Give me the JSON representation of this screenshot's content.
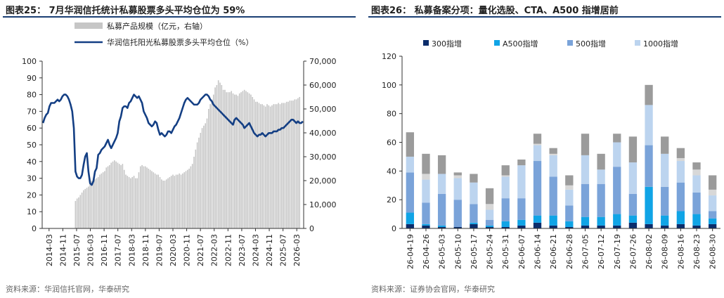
{
  "chart_data": [
    {
      "type": "bar+line",
      "title": "图表25： 7月华润信托统计私募股票多头平均仓位为 59%",
      "source": "资料来源：华润信托官网，华泰研究",
      "legend_placement": "top",
      "series": [
        {
          "name": "私募产品规模（亿元，右轴）",
          "type": "bar",
          "color": "#c6c6c6",
          "axis": "right",
          "values": [
            null,
            null,
            null,
            null,
            null,
            null,
            null,
            null,
            null,
            null,
            null,
            null,
            null,
            null,
            null,
            null,
            null,
            null,
            null,
            null,
            11500,
            12500,
            13000,
            14000,
            15000,
            16000,
            16500,
            17000,
            17500,
            19000,
            20000,
            21000,
            20500,
            21000,
            21500,
            22500,
            23000,
            23500,
            24000,
            25500,
            26000,
            26500,
            27500,
            28000,
            28500,
            28000,
            27500,
            27000,
            26500,
            27000,
            24500,
            22500,
            22000,
            21500,
            21000,
            21500,
            22000,
            21000,
            21000,
            23500,
            26000,
            26500,
            26000,
            26000,
            25500,
            25000,
            24500,
            24000,
            23500,
            23000,
            22500,
            22500,
            21500,
            20500,
            20000,
            20000,
            20500,
            21000,
            21500,
            22000,
            22500,
            22000,
            22500,
            22500,
            23000,
            22500,
            23000,
            23500,
            24000,
            24500,
            25000,
            26000,
            27000,
            30000,
            33000,
            36000,
            38000,
            40000,
            42000,
            43000,
            44000,
            46000,
            50000,
            52000,
            54000,
            56000,
            59000,
            60000,
            62000,
            61000,
            60000,
            58000,
            58000,
            57000,
            57000,
            57000,
            57500,
            56500,
            56000,
            56000,
            55500,
            56500,
            57000,
            57500,
            58000,
            57500,
            57000,
            56500,
            56000,
            55000,
            54000,
            53000,
            53000,
            52500,
            52000,
            52000,
            51500,
            51000,
            52000,
            51500,
            51000,
            51500,
            52000,
            52000,
            52000,
            52500,
            52000,
            52500,
            52500,
            52500,
            53000,
            53000,
            53500,
            53500,
            53500,
            54000,
            54000,
            54500,
            55000
          ]
        },
        {
          "name": "华润信托阳光私募股票多头平均仓位（%）",
          "type": "line",
          "color": "#143f84",
          "axis": "left",
          "values": [
            63,
            66,
            68,
            69,
            73,
            75,
            75,
            75,
            76,
            77,
            76,
            77,
            79,
            80,
            80,
            79,
            77,
            74,
            70,
            60,
            34,
            31,
            30,
            30,
            32,
            38,
            43,
            45,
            34,
            27,
            26,
            28,
            34,
            36,
            44,
            45,
            47,
            48,
            49,
            51,
            53,
            50,
            48,
            50,
            52,
            54,
            57,
            64,
            67,
            72,
            73,
            73,
            72,
            75,
            76,
            78,
            80,
            79,
            78,
            79,
            77,
            75,
            70,
            68,
            66,
            63,
            62,
            61,
            62,
            64,
            63,
            59,
            56,
            57,
            56,
            55,
            56,
            58,
            58,
            57,
            59,
            61,
            62,
            64,
            66,
            69,
            72,
            75,
            77,
            78,
            77,
            76,
            75,
            74,
            74,
            74,
            75,
            77,
            78,
            79,
            80,
            80,
            79,
            77,
            76,
            74,
            73,
            72,
            71,
            70,
            69,
            68,
            67,
            66,
            65,
            64,
            63,
            62,
            65,
            66,
            65,
            64,
            63,
            62,
            60,
            61,
            62,
            63,
            61,
            59,
            57,
            56,
            55,
            56,
            56,
            57,
            56,
            55,
            56,
            57,
            57,
            57,
            58,
            58,
            58,
            59,
            59,
            60,
            60,
            61,
            62,
            63,
            64,
            65,
            65,
            64,
            63,
            64,
            63,
            63,
            64
          ]
        }
      ],
      "x_tick_labels": [
        "2014-03",
        "2014-11",
        "2015-07",
        "2016-03",
        "2016-11",
        "2017-07",
        "2018-03",
        "2018-11",
        "2019-07",
        "2020-03",
        "2020-11",
        "2021-07",
        "2022-03",
        "2022-11",
        "2023-07",
        "2024-03",
        "2024-11",
        "2025-07",
        "2026-03"
      ],
      "ylim_left": [
        0,
        100
      ],
      "yticks_left": [
        "0",
        "10",
        "20",
        "30",
        "40",
        "50",
        "60",
        "70",
        "80",
        "90",
        "100"
      ],
      "ylim_right": [
        0,
        70000
      ],
      "yticks_right": [
        "0",
        "10,000",
        "20,000",
        "30,000",
        "40,000",
        "50,000",
        "60,000",
        "70,000"
      ],
      "grid": false
    },
    {
      "type": "stacked_bar",
      "title": "图表26： 私募备案分项：量化选股、CTA、A500 指增居前",
      "source": "资料来源：证券协会官网，华泰研究",
      "legend_placement": "top",
      "categories": [
        "26-04-19",
        "26-04-26",
        "26-05-03",
        "26-05-10",
        "26-05-17",
        "26-05-24",
        "26-05-31",
        "26-06-07",
        "26-06-14",
        "26-06-21",
        "26-06-28",
        "26-07-05",
        "26-07-12",
        "26-07-19",
        "26-07-26",
        "26-08-02",
        "26-08-09",
        "26-08-16",
        "26-08-23",
        "26-08-30"
      ],
      "ylim": [
        0,
        120
      ],
      "yticks": [
        "0",
        "20",
        "40",
        "60",
        "80",
        "100",
        "120"
      ],
      "series": [
        {
          "name": "300指增",
          "color": "#0b2d6b",
          "values": [
            3,
            2,
            1,
            1,
            3,
            1,
            1,
            2,
            4,
            2,
            1,
            2,
            2,
            2,
            4,
            3,
            2,
            3,
            2,
            3
          ]
        },
        {
          "name": "A500指增",
          "color": "#10a4e6",
          "values": [
            8,
            1,
            1,
            0,
            1,
            1,
            4,
            4,
            5,
            7,
            4,
            6,
            6,
            8,
            5,
            26,
            7,
            9,
            8,
            4
          ]
        },
        {
          "name": "500指增",
          "color": "#7aa3d9",
          "values": [
            28,
            15,
            22,
            19,
            13,
            4,
            16,
            15,
            38,
            27,
            11,
            23,
            23,
            33,
            15,
            29,
            20,
            20,
            15,
            5
          ]
        },
        {
          "name": "1000指增",
          "color": "#bcd4ef",
          "values": [
            11,
            16,
            14,
            15,
            15,
            7,
            15,
            23,
            11,
            15,
            11,
            20,
            10,
            17,
            22,
            28,
            23,
            15,
            12,
            11
          ]
        },
        {
          "name": "",
          "color": "#d8d8d8",
          "values": [
            0,
            4,
            0,
            2,
            0,
            4,
            1,
            0,
            1,
            1,
            3,
            0,
            0,
            0,
            0,
            0,
            0,
            2,
            4,
            4
          ]
        },
        {
          "name": "",
          "color": "#9b9b9b",
          "values": [
            17,
            14,
            13,
            2,
            6,
            11,
            7,
            4,
            7,
            4,
            7,
            15,
            11,
            6,
            18,
            14,
            12,
            7,
            5,
            10
          ]
        }
      ],
      "grid": false
    }
  ]
}
